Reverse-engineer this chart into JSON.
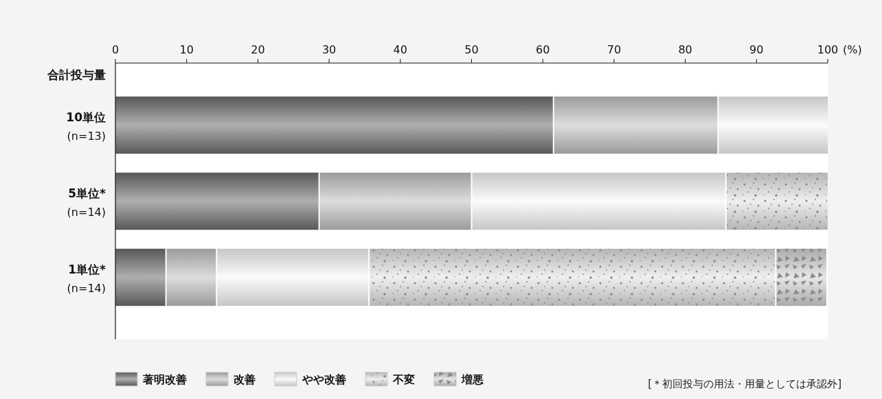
{
  "chart_data": {
    "type": "bar",
    "orientation": "horizontal",
    "stacked": true,
    "ylabel": "合計投与量",
    "xlabel": "(%)",
    "categories": [
      "10単位\n(n=13)",
      "5単位*\n(n=14)",
      "1単位*\n(n=14)"
    ],
    "series": [
      {
        "name": "著明改善",
        "color": "#6e6e6e",
        "values": [
          61.5,
          28.6,
          7.1
        ]
      },
      {
        "name": "改善",
        "color": "#c2c2c2",
        "values": [
          23.1,
          21.4,
          7.1
        ]
      },
      {
        "name": "やや改善",
        "color": "#f7f7f7",
        "values": [
          15.4,
          35.7,
          21.4
        ]
      },
      {
        "name": "不変",
        "color": "#e2e2e2",
        "values": [
          0,
          14.3,
          57.1
        ]
      },
      {
        "name": "増悪",
        "color": "#d4d4d4",
        "values": [
          0,
          0,
          7.1
        ]
      }
    ],
    "xlim": [
      0,
      100
    ],
    "xticks": [
      0,
      10,
      20,
      30,
      40,
      50,
      60,
      70,
      80,
      90,
      100
    ],
    "grid": false,
    "legend": "bottom",
    "annotations": [
      "[＊初回投与の用法・用量としては承認外]"
    ]
  }
}
